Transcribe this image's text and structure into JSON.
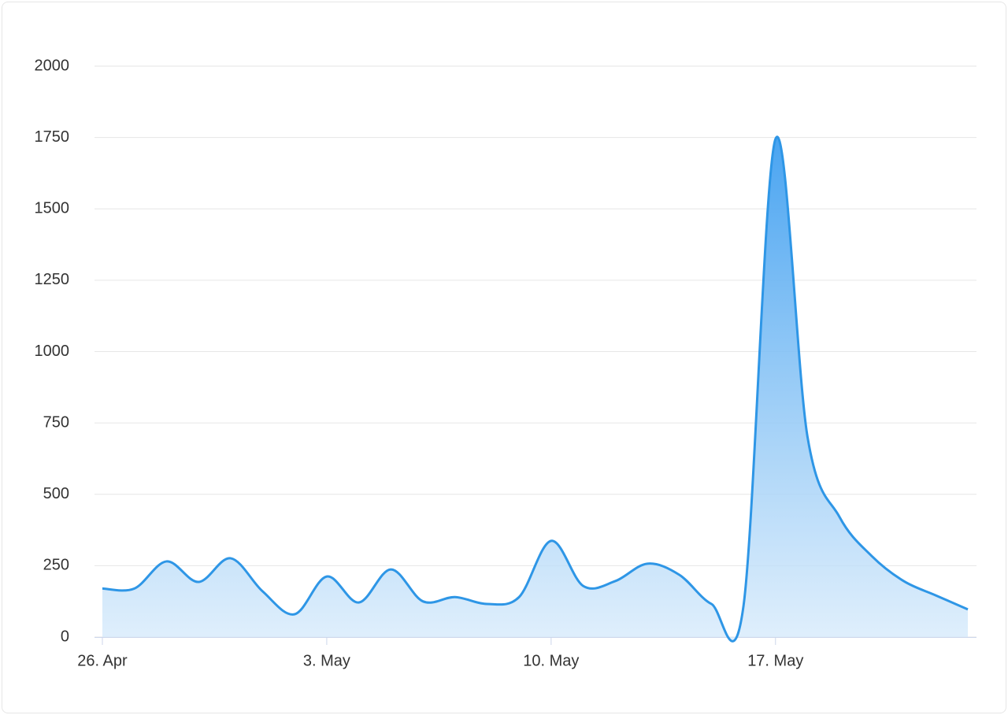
{
  "chart_data": {
    "type": "area",
    "categories": [
      "26. Apr",
      null,
      null,
      null,
      null,
      null,
      null,
      "3. May",
      null,
      null,
      null,
      null,
      null,
      null,
      "10. May",
      null,
      null,
      null,
      null,
      null,
      null,
      "17. May",
      null,
      null,
      null,
      null,
      null,
      null
    ],
    "values": [
      170,
      170,
      265,
      193,
      276,
      160,
      80,
      212,
      121,
      237,
      125,
      140,
      116,
      140,
      337,
      179,
      196,
      257,
      218,
      116,
      108,
      1745,
      700,
      420,
      284,
      196,
      146,
      97
    ],
    "color": "#2e96e6",
    "ylim": [
      0,
      2000
    ],
    "yticks": [
      0,
      250,
      500,
      750,
      1000,
      1250,
      1500,
      1750,
      2000
    ],
    "grid": true
  }
}
